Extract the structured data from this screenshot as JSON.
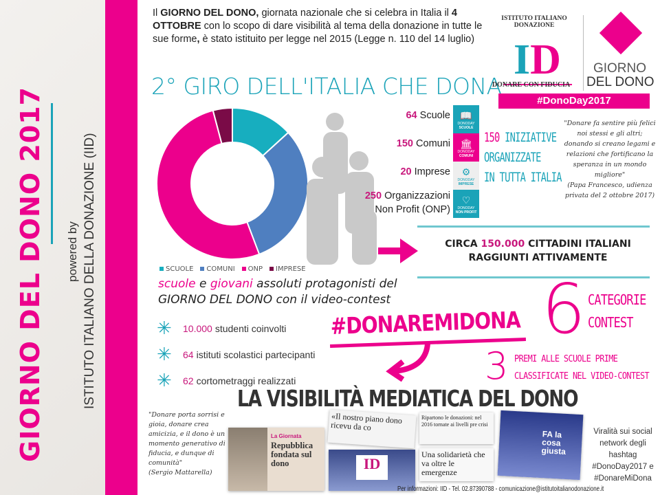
{
  "sidebar": {
    "title": "GIORNO DEL DONO 2017",
    "powered_by": "powered by",
    "organization": "ISTITUTO ITALIANO DELLA DONAZIONE (IID)"
  },
  "intro": {
    "p1": "Il ",
    "b1": "GIORNO DEL DONO,",
    "p2": " giornata nazionale che si celebra in Italia il ",
    "b2": "4 OTTOBRE",
    "p3": " con lo scopo di dare visibilità al tema della donazione in tutte le sue forme",
    "b3": ",",
    "p4": " è stato istituito per legge nel 2015 (Legge n. 110 del 14 luglio)"
  },
  "heading": "2° GIRO DELL'ITALIA CHE DONA",
  "logo": {
    "arc_text": "ISTITUTO ITALIANO DONAZIONE",
    "letters": "ID",
    "tagline": "DONARE CON FIDUCIA",
    "gdd_line1": "GIORNO",
    "gdd_line2": "DEL DONO",
    "hashtag": "#DonoDay2017"
  },
  "colors": {
    "pink": "#ec008c",
    "teal": "#1aa3b8",
    "blue": "#4f7fc0",
    "dark_magenta": "#7a0b47"
  },
  "chart_data": {
    "type": "pie",
    "donut": true,
    "categories": [
      "SCUOLE",
      "COMUNI",
      "ONP",
      "IMPRESE"
    ],
    "values": [
      64,
      150,
      250,
      20
    ],
    "colors": [
      "#17aebf",
      "#4f7fc0",
      "#ec008c",
      "#7a0b47"
    ],
    "legend": "bottom"
  },
  "stats": [
    {
      "num": "64",
      "label": " Scuole"
    },
    {
      "num": "150",
      "label": " Comuni"
    },
    {
      "num": "20",
      "label": " Imprese"
    },
    {
      "num": "250",
      "label": " Organizzazioni",
      "label2": "Non Profit (ONP)"
    }
  ],
  "tiles": [
    {
      "icon": "book-icon",
      "glyph": "📖",
      "sub": "DONODAY",
      "label": "SCUOLE",
      "color": "#1aa3b8"
    },
    {
      "icon": "building-icon",
      "glyph": "🏛",
      "sub": "DONODAY",
      "label": "COMUNI",
      "color": "#ec008c"
    },
    {
      "icon": "gears-icon",
      "glyph": "⚙",
      "sub": "DONODAY",
      "label": "IMPRESE",
      "color": "#eeeeee"
    },
    {
      "icon": "heart-icon",
      "glyph": "♡",
      "sub": "DONODAY",
      "label": "NON PROFIT",
      "color": "#1aa3b8"
    }
  ],
  "iniziative": {
    "num": "150",
    "line1": " INIZIATIVE",
    "line2": "ORGANIZZATE",
    "line3": "IN TUTTA ITALIA"
  },
  "quote_papa": {
    "text": "\"Donare fa sentire più felici noi stessi e gli altri; donando si creano legami e relazioni che fortificano la speranza in un mondo migliore\"",
    "author": "(Papa Francesco, udienza privata del 2 ottobre 2017)"
  },
  "circa": {
    "pre": "CIRCA ",
    "num": "150.000",
    "post": " CITTADINI ITALIANI",
    "line2": "RAGGIUNTI ATTIVAMENTE"
  },
  "scuole_text": {
    "w1": "scuole",
    "w2": " e ",
    "w3": "giovani",
    "w4": " assoluti protagonisti del",
    "line2": "GIORNO DEL DONO con il video-contest"
  },
  "bullets": [
    {
      "num": "10.000",
      "label": "studenti coinvolti"
    },
    {
      "num": "64",
      "label": "istituti scolastici partecipanti"
    },
    {
      "num": "62",
      "label": "cortometraggi realizzati"
    }
  ],
  "contest": {
    "hashtag": "#DONAREMIDONA",
    "six": "6",
    "cat1": "CATEGORIE",
    "cat2": "CONTEST",
    "three": "3",
    "premi1": "PREMI ALLE SCUOLE PRIME",
    "premi2": "CLASSIFICATE NEL VIDEO-CONTEST"
  },
  "media": {
    "title": "LA VISIBILITÀ MEDIATICA DEL DONO",
    "quote_mattarella": "\"Donare porta sorrisi e gioia, donare crea amicizia, e il dono è un momento generativo di fiducia, e dunque di comunità\"",
    "author_mattarella": "(Sergio Mattarella)",
    "clip1_label": "La Giornata",
    "clip1_headline": "Repubblica fondata sul dono",
    "clip2_headline": "«Il nostro piano dono ricevu da co",
    "clip4_headline": "Ripartono le donazioni: nel 2016 tornate ai livelli pre crisi",
    "clip5_headline": "FA la cosa giusta",
    "clip6_headline": "Una solidarietà che va oltre le emergenze",
    "viral": "Viralità sui social network degli hashtag #DonoDay2017 e #DonareMiDona"
  },
  "footer": "Per informazioni: IID - Tel. 02.87390788 - comunicazione@istitutoitalianodonazione.it"
}
